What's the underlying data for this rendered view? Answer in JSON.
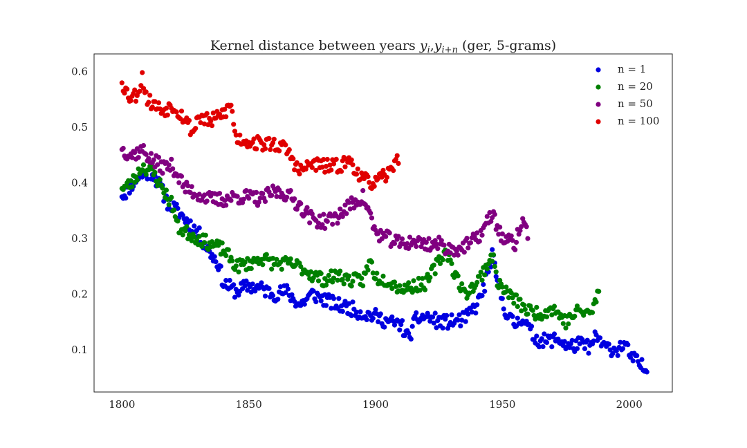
{
  "chart_data": {
    "type": "scatter",
    "title": "Kernel distance between years y_i, y_{i+n} (ger, 5-grams)",
    "title_parts": {
      "prefix": "Kernel distance between years ",
      "y1": "y",
      "s1": "i",
      "comma": ",",
      "y2": "y",
      "s2": "i+n",
      "suffix": " (ger, 5-grams)"
    },
    "xlabel": "",
    "ylabel": "",
    "xlim": [
      1789,
      2017
    ],
    "ylim": [
      0.024,
      0.632
    ],
    "x_ticks": [
      "1800",
      "1850",
      "1900",
      "1950",
      "2000"
    ],
    "y_ticks": [
      "0.1",
      "0.2",
      "0.3",
      "0.4",
      "0.5",
      "0.6"
    ],
    "grid": false,
    "legend_position": "top-right",
    "series": [
      {
        "name": "n = 1",
        "color": "#0000e0",
        "anchors": [
          [
            1800,
            0.375
          ],
          [
            1806,
            0.41
          ],
          [
            1812,
            0.42
          ],
          [
            1818,
            0.365
          ],
          [
            1824,
            0.34
          ],
          [
            1830,
            0.31
          ],
          [
            1834,
            0.28
          ],
          [
            1838,
            0.255
          ],
          [
            1840,
            0.22
          ],
          [
            1845,
            0.205
          ],
          [
            1850,
            0.215
          ],
          [
            1855,
            0.21
          ],
          [
            1860,
            0.2
          ],
          [
            1865,
            0.205
          ],
          [
            1870,
            0.18
          ],
          [
            1875,
            0.2
          ],
          [
            1880,
            0.19
          ],
          [
            1885,
            0.18
          ],
          [
            1890,
            0.175
          ],
          [
            1895,
            0.165
          ],
          [
            1900,
            0.16
          ],
          [
            1905,
            0.15
          ],
          [
            1910,
            0.145
          ],
          [
            1913,
            0.12
          ],
          [
            1916,
            0.155
          ],
          [
            1920,
            0.16
          ],
          [
            1925,
            0.15
          ],
          [
            1930,
            0.15
          ],
          [
            1935,
            0.155
          ],
          [
            1940,
            0.18
          ],
          [
            1943,
            0.215
          ],
          [
            1946,
            0.27
          ],
          [
            1948,
            0.22
          ],
          [
            1950,
            0.19
          ],
          [
            1952,
            0.16
          ],
          [
            1955,
            0.145
          ],
          [
            1958,
            0.16
          ],
          [
            1960,
            0.14
          ],
          [
            1963,
            0.12
          ],
          [
            1967,
            0.115
          ],
          [
            1972,
            0.12
          ],
          [
            1976,
            0.105
          ],
          [
            1980,
            0.11
          ],
          [
            1985,
            0.105
          ],
          [
            1987,
            0.125
          ],
          [
            1990,
            0.105
          ],
          [
            1995,
            0.1
          ],
          [
            1998,
            0.11
          ],
          [
            2001,
            0.085
          ],
          [
            2004,
            0.075
          ],
          [
            2007,
            0.06
          ]
        ],
        "jitter": 0.013,
        "seed": 11
      },
      {
        "name": "n = 20",
        "color": "#008000",
        "anchors": [
          [
            1800,
            0.39
          ],
          [
            1804,
            0.4
          ],
          [
            1808,
            0.43
          ],
          [
            1812,
            0.42
          ],
          [
            1816,
            0.39
          ],
          [
            1820,
            0.36
          ],
          [
            1822,
            0.32
          ],
          [
            1826,
            0.31
          ],
          [
            1830,
            0.3
          ],
          [
            1835,
            0.29
          ],
          [
            1840,
            0.28
          ],
          [
            1845,
            0.25
          ],
          [
            1850,
            0.255
          ],
          [
            1855,
            0.265
          ],
          [
            1860,
            0.255
          ],
          [
            1865,
            0.255
          ],
          [
            1870,
            0.25
          ],
          [
            1875,
            0.235
          ],
          [
            1880,
            0.225
          ],
          [
            1885,
            0.235
          ],
          [
            1890,
            0.225
          ],
          [
            1895,
            0.225
          ],
          [
            1898,
            0.26
          ],
          [
            1900,
            0.23
          ],
          [
            1905,
            0.225
          ],
          [
            1910,
            0.21
          ],
          [
            1915,
            0.215
          ],
          [
            1920,
            0.22
          ],
          [
            1925,
            0.26
          ],
          [
            1928,
            0.28
          ],
          [
            1930,
            0.25
          ],
          [
            1935,
            0.2
          ],
          [
            1940,
            0.22
          ],
          [
            1943,
            0.245
          ],
          [
            1946,
            0.27
          ],
          [
            1948,
            0.225
          ],
          [
            1950,
            0.21
          ],
          [
            1955,
            0.19
          ],
          [
            1960,
            0.17
          ],
          [
            1965,
            0.165
          ],
          [
            1970,
            0.175
          ],
          [
            1975,
            0.15
          ],
          [
            1980,
            0.17
          ],
          [
            1985,
            0.165
          ],
          [
            1988,
            0.205
          ]
        ],
        "jitter": 0.012,
        "seed": 23
      },
      {
        "name": "n = 50",
        "color": "#800080",
        "anchors": [
          [
            1800,
            0.46
          ],
          [
            1804,
            0.45
          ],
          [
            1808,
            0.46
          ],
          [
            1812,
            0.44
          ],
          [
            1816,
            0.43
          ],
          [
            1820,
            0.43
          ],
          [
            1825,
            0.39
          ],
          [
            1830,
            0.38
          ],
          [
            1835,
            0.37
          ],
          [
            1840,
            0.37
          ],
          [
            1845,
            0.375
          ],
          [
            1850,
            0.375
          ],
          [
            1855,
            0.37
          ],
          [
            1860,
            0.385
          ],
          [
            1865,
            0.38
          ],
          [
            1870,
            0.36
          ],
          [
            1875,
            0.335
          ],
          [
            1880,
            0.33
          ],
          [
            1885,
            0.34
          ],
          [
            1890,
            0.36
          ],
          [
            1895,
            0.375
          ],
          [
            1898,
            0.34
          ],
          [
            1900,
            0.31
          ],
          [
            1905,
            0.3
          ],
          [
            1910,
            0.29
          ],
          [
            1915,
            0.295
          ],
          [
            1920,
            0.29
          ],
          [
            1925,
            0.29
          ],
          [
            1930,
            0.28
          ],
          [
            1935,
            0.285
          ],
          [
            1940,
            0.3
          ],
          [
            1943,
            0.32
          ],
          [
            1946,
            0.345
          ],
          [
            1950,
            0.3
          ],
          [
            1955,
            0.29
          ],
          [
            1958,
            0.335
          ],
          [
            1960,
            0.3
          ]
        ],
        "jitter": 0.013,
        "seed": 37
      },
      {
        "name": "n = 100",
        "color": "#e00000",
        "anchors": [
          [
            1800,
            0.58
          ],
          [
            1803,
            0.555
          ],
          [
            1806,
            0.56
          ],
          [
            1808,
            0.59
          ],
          [
            1810,
            0.55
          ],
          [
            1813,
            0.54
          ],
          [
            1816,
            0.53
          ],
          [
            1820,
            0.54
          ],
          [
            1825,
            0.515
          ],
          [
            1828,
            0.49
          ],
          [
            1830,
            0.52
          ],
          [
            1835,
            0.51
          ],
          [
            1840,
            0.525
          ],
          [
            1843,
            0.54
          ],
          [
            1845,
            0.48
          ],
          [
            1850,
            0.475
          ],
          [
            1855,
            0.47
          ],
          [
            1860,
            0.47
          ],
          [
            1865,
            0.46
          ],
          [
            1870,
            0.42
          ],
          [
            1875,
            0.435
          ],
          [
            1880,
            0.43
          ],
          [
            1885,
            0.43
          ],
          [
            1890,
            0.44
          ],
          [
            1895,
            0.405
          ],
          [
            1900,
            0.4
          ],
          [
            1903,
            0.41
          ],
          [
            1906,
            0.42
          ],
          [
            1908,
            0.45
          ],
          [
            1909,
            0.435
          ]
        ],
        "jitter": 0.013,
        "seed": 53
      }
    ]
  }
}
